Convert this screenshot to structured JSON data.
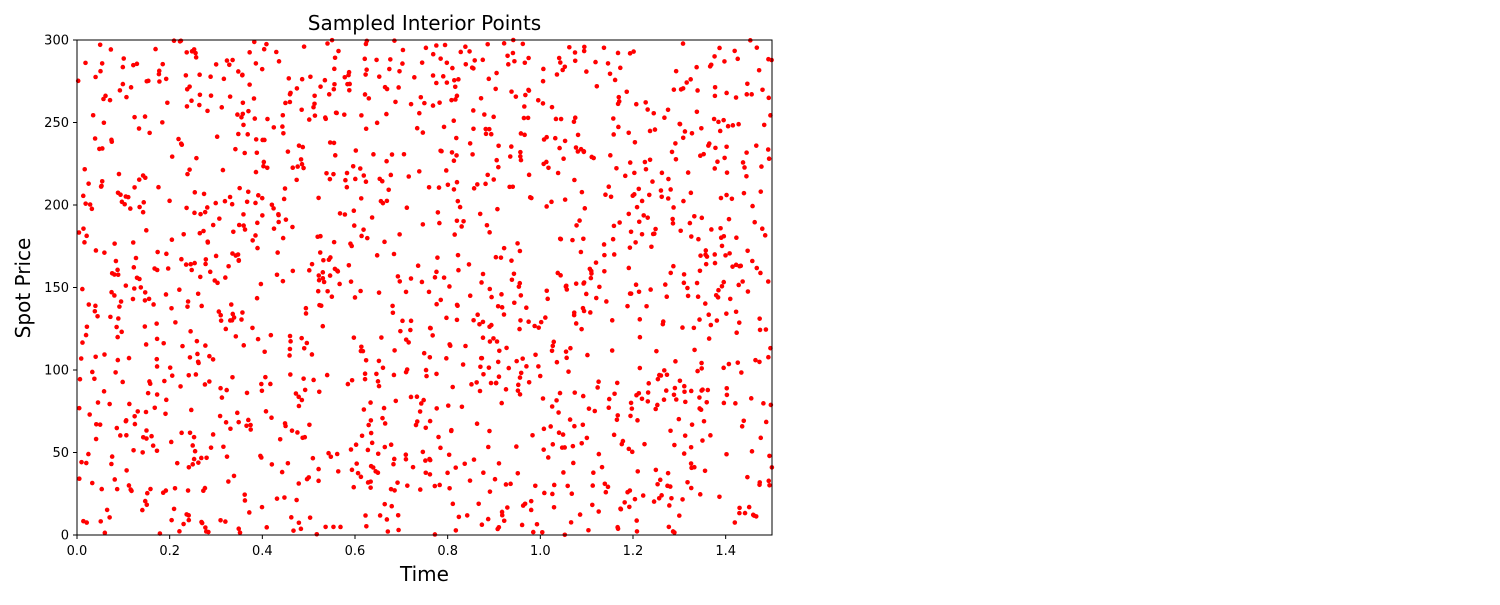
{
  "chart_data": {
    "type": "scatter",
    "title": "Sampled Interior Points",
    "xlabel": "Time",
    "ylabel": "Spot Price",
    "xlim": [
      0.0,
      1.5
    ],
    "ylim": [
      0,
      300
    ],
    "x_ticks": [
      "0.0",
      "0.2",
      "0.4",
      "0.6",
      "0.8",
      "1.0",
      "1.2",
      "1.4"
    ],
    "y_ticks": [
      "0",
      "50",
      "100",
      "150",
      "200",
      "250",
      "300"
    ],
    "grid": false,
    "legend": "none",
    "series": [
      {
        "color": "#ff0000",
        "marker": "circle",
        "distribution": "uniform",
        "n_points": 1500,
        "seed": 20240517,
        "x_range": [
          0.0,
          1.5
        ],
        "y_range": [
          0,
          300
        ]
      }
    ]
  }
}
